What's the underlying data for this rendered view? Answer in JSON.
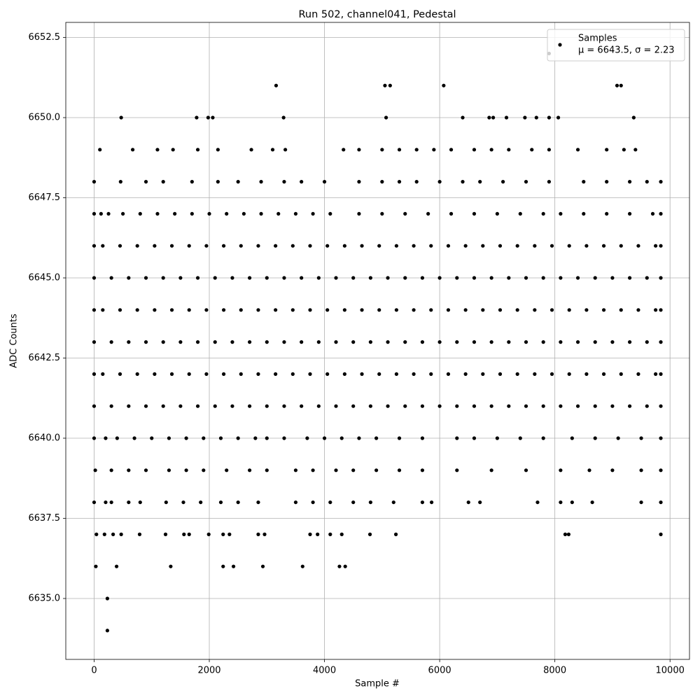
{
  "chart_data": {
    "type": "scatter",
    "title": "Run 502, channel041, Pedestal",
    "xlabel": "Sample #",
    "ylabel": "ADC Counts",
    "xlim": [
      -492,
      10338
    ],
    "ylim": [
      6633.1,
      6652.97
    ],
    "xticks": [
      0,
      2000,
      4000,
      6000,
      8000,
      10000
    ],
    "yticks": [
      {
        "value": 6635,
        "label": "6635.0"
      },
      {
        "value": 6637.5,
        "label": "6637.5"
      },
      {
        "value": 6640,
        "label": "6640.0"
      },
      {
        "value": 6642.5,
        "label": "6642.5"
      },
      {
        "value": 6645,
        "label": "6645.0"
      },
      {
        "value": 6647.5,
        "label": "6647.5"
      },
      {
        "value": 6650,
        "label": "6650.0"
      },
      {
        "value": 6652.5,
        "label": "6652.5"
      }
    ],
    "grid": true,
    "legend": "upper right",
    "legend_note": "μ = 6643.5, σ = 2.23",
    "x": [
      0,
      300,
      600,
      900,
      1200,
      1500,
      1800,
      2100,
      2400,
      2700,
      3000,
      3300,
      3600,
      3900,
      4200,
      4500,
      4800,
      5100,
      5400,
      5700,
      6000,
      6300,
      6600,
      6900,
      7200,
      7500,
      7800,
      8100,
      8400,
      8700,
      9000,
      9300,
      9600,
      9840,
      0,
      150,
      450,
      750,
      1050,
      1350,
      1650,
      1950,
      2250,
      2550,
      2850,
      3150,
      3450,
      3750,
      4050,
      4350,
      4650,
      4950,
      5250,
      5550,
      5850,
      6150,
      6450,
      6750,
      7050,
      7350,
      7650,
      7950,
      8250,
      8550,
      8850,
      9150,
      9450,
      9750,
      9840,
      0,
      300,
      600,
      900,
      1200,
      1500,
      1800,
      2100,
      2400,
      2700,
      3000,
      3300,
      3600,
      3900,
      4200,
      4500,
      4800,
      5100,
      5400,
      5700,
      6000,
      6300,
      6600,
      6900,
      7200,
      7500,
      7800,
      8100,
      8400,
      8700,
      9000,
      9300,
      9600,
      9840,
      0,
      150,
      450,
      750,
      1050,
      1350,
      1650,
      1950,
      2250,
      2550,
      2850,
      3150,
      3450,
      3750,
      4050,
      4350,
      4650,
      4950,
      5250,
      5550,
      5850,
      6150,
      6450,
      6750,
      7050,
      7350,
      7650,
      7950,
      8250,
      8550,
      8850,
      9150,
      9450,
      9750,
      9840,
      0,
      300,
      600,
      900,
      1200,
      1500,
      1800,
      2100,
      2400,
      2700,
      3000,
      3300,
      3600,
      3900,
      4200,
      4500,
      4800,
      5100,
      5400,
      5700,
      6000,
      6300,
      6600,
      6900,
      7200,
      7500,
      7800,
      8100,
      8400,
      8700,
      9000,
      9300,
      9600,
      9840,
      0,
      150,
      450,
      750,
      1050,
      1350,
      1650,
      1950,
      2250,
      2550,
      2850,
      3150,
      3450,
      3750,
      4050,
      4350,
      4650,
      4950,
      5250,
      5550,
      5850,
      6150,
      6450,
      6750,
      7050,
      7350,
      7650,
      7950,
      8250,
      8550,
      8850,
      9150,
      9450,
      9750,
      9840,
      0,
      120,
      250,
      500,
      800,
      1100,
      1400,
      1700,
      2000,
      2300,
      2600,
      2900,
      3200,
      3500,
      3800,
      4100,
      4600,
      5000,
      5400,
      5800,
      6200,
      6600,
      7000,
      7400,
      7800,
      8100,
      8500,
      8900,
      9300,
      9700,
      9840,
      0,
      200,
      400,
      700,
      1000,
      1300,
      1600,
      1900,
      2200,
      2500,
      2800,
      3000,
      3300,
      3700,
      4000,
      4300,
      4600,
      4900,
      5300,
      5700,
      6300,
      6600,
      7000,
      7400,
      7800,
      8300,
      8700,
      9100,
      9500,
      9840,
      20,
      300,
      600,
      900,
      1300,
      1600,
      1900,
      2300,
      2700,
      3000,
      3500,
      3800,
      4200,
      4500,
      4900,
      5300,
      5700,
      6300,
      6900,
      7500,
      8100,
      8600,
      9000,
      9500,
      9840,
      0,
      460,
      900,
      1200,
      1700,
      2150,
      2500,
      2900,
      3300,
      3600,
      4000,
      4600,
      5000,
      5300,
      5600,
      6000,
      6400,
      6700,
      7100,
      7500,
      7900,
      8500,
      8900,
      9300,
      9600,
      9840,
      0,
      200,
      300,
      600,
      800,
      1250,
      1550,
      1850,
      2200,
      2500,
      2850,
      3500,
      3800,
      4100,
      4500,
      4800,
      5200,
      5700,
      5860,
      6500,
      6700,
      7700,
      8100,
      8300,
      8650,
      9500,
      9840,
      100,
      670,
      1100,
      1370,
      1800,
      2150,
      2730,
      3100,
      3320,
      4330,
      4600,
      5000,
      5300,
      5600,
      5900,
      6200,
      6600,
      6900,
      7200,
      7600,
      7900,
      8400,
      8900,
      9200,
      9400,
      40,
      180,
      330,
      470,
      790,
      1240,
      1560,
      1650,
      1990,
      2240,
      2350,
      2850,
      2960,
      3750,
      3880,
      4100,
      4300,
      4790,
      5240,
      8180,
      8240,
      9840,
      30,
      390,
      1330,
      2240,
      2420,
      2930,
      3620,
      4260,
      4360,
      230,
      230,
      470,
      1780,
      1980,
      2060,
      3290,
      5070,
      6400,
      6860,
      6930,
      7160,
      7480,
      7680,
      7900,
      8060,
      9370,
      3160,
      5050,
      5140,
      6070,
      9080,
      9150,
      7900
    ],
    "series": [
      {
        "name": "Samples",
        "color": "#000000",
        "values": [
          6641,
          6641,
          6641,
          6641,
          6641,
          6641,
          6641,
          6641,
          6641,
          6641,
          6641,
          6641,
          6641,
          6641,
          6641,
          6641,
          6641,
          6641,
          6641,
          6641,
          6641,
          6641,
          6641,
          6641,
          6641,
          6641,
          6641,
          6641,
          6641,
          6641,
          6641,
          6641,
          6641,
          6641,
          6642,
          6642,
          6642,
          6642,
          6642,
          6642,
          6642,
          6642,
          6642,
          6642,
          6642,
          6642,
          6642,
          6642,
          6642,
          6642,
          6642,
          6642,
          6642,
          6642,
          6642,
          6642,
          6642,
          6642,
          6642,
          6642,
          6642,
          6642,
          6642,
          6642,
          6642,
          6642,
          6642,
          6642,
          6642,
          6643,
          6643,
          6643,
          6643,
          6643,
          6643,
          6643,
          6643,
          6643,
          6643,
          6643,
          6643,
          6643,
          6643,
          6643,
          6643,
          6643,
          6643,
          6643,
          6643,
          6643,
          6643,
          6643,
          6643,
          6643,
          6643,
          6643,
          6643,
          6643,
          6643,
          6643,
          6643,
          6643,
          6643,
          6644,
          6644,
          6644,
          6644,
          6644,
          6644,
          6644,
          6644,
          6644,
          6644,
          6644,
          6644,
          6644,
          6644,
          6644,
          6644,
          6644,
          6644,
          6644,
          6644,
          6644,
          6644,
          6644,
          6644,
          6644,
          6644,
          6644,
          6644,
          6644,
          6644,
          6644,
          6644,
          6644,
          6644,
          6644,
          6645,
          6645,
          6645,
          6645,
          6645,
          6645,
          6645,
          6645,
          6645,
          6645,
          6645,
          6645,
          6645,
          6645,
          6645,
          6645,
          6645,
          6645,
          6645,
          6645,
          6645,
          6645,
          6645,
          6645,
          6645,
          6645,
          6645,
          6645,
          6645,
          6645,
          6645,
          6645,
          6645,
          6645,
          6646,
          6646,
          6646,
          6646,
          6646,
          6646,
          6646,
          6646,
          6646,
          6646,
          6646,
          6646,
          6646,
          6646,
          6646,
          6646,
          6646,
          6646,
          6646,
          6646,
          6646,
          6646,
          6646,
          6646,
          6646,
          6646,
          6646,
          6646,
          6646,
          6646,
          6646,
          6646,
          6646,
          6646,
          6646,
          6647,
          6647,
          6647,
          6647,
          6647,
          6647,
          6647,
          6647,
          6647,
          6647,
          6647,
          6647,
          6647,
          6647,
          6647,
          6647,
          6647,
          6647,
          6647,
          6647,
          6647,
          6647,
          6647,
          6647,
          6647,
          6647,
          6647,
          6647,
          6647,
          6647,
          6647,
          6640,
          6640,
          6640,
          6640,
          6640,
          6640,
          6640,
          6640,
          6640,
          6640,
          6640,
          6640,
          6640,
          6640,
          6640,
          6640,
          6640,
          6640,
          6640,
          6640,
          6640,
          6640,
          6640,
          6640,
          6640,
          6640,
          6640,
          6640,
          6640,
          6640,
          6639,
          6639,
          6639,
          6639,
          6639,
          6639,
          6639,
          6639,
          6639,
          6639,
          6639,
          6639,
          6639,
          6639,
          6639,
          6639,
          6639,
          6639,
          6639,
          6639,
          6639,
          6639,
          6639,
          6639,
          6639,
          6648,
          6648,
          6648,
          6648,
          6648,
          6648,
          6648,
          6648,
          6648,
          6648,
          6648,
          6648,
          6648,
          6648,
          6648,
          6648,
          6648,
          6648,
          6648,
          6648,
          6648,
          6648,
          6648,
          6648,
          6648,
          6648,
          6638,
          6638,
          6638,
          6638,
          6638,
          6638,
          6638,
          6638,
          6638,
          6638,
          6638,
          6638,
          6638,
          6638,
          6638,
          6638,
          6638,
          6638,
          6638,
          6638,
          6638,
          6638,
          6638,
          6638,
          6638,
          6638,
          6638,
          6649,
          6649,
          6649,
          6649,
          6649,
          6649,
          6649,
          6649,
          6649,
          6649,
          6649,
          6649,
          6649,
          6649,
          6649,
          6649,
          6649,
          6649,
          6649,
          6649,
          6649,
          6649,
          6649,
          6649,
          6649,
          6637,
          6637,
          6637,
          6637,
          6637,
          6637,
          6637,
          6637,
          6637,
          6637,
          6637,
          6637,
          6637,
          6637,
          6637,
          6637,
          6637,
          6637,
          6637,
          6637,
          6637,
          6637,
          6636,
          6636,
          6636,
          6636,
          6636,
          6636,
          6636,
          6636,
          6636,
          6635,
          6634,
          6650,
          6650,
          6650,
          6650,
          6650,
          6650,
          6650,
          6650,
          6650,
          6650,
          6650,
          6650,
          6650,
          6650,
          6650,
          6651,
          6651,
          6651,
          6651,
          6651,
          6651,
          6652
        ]
      }
    ]
  }
}
